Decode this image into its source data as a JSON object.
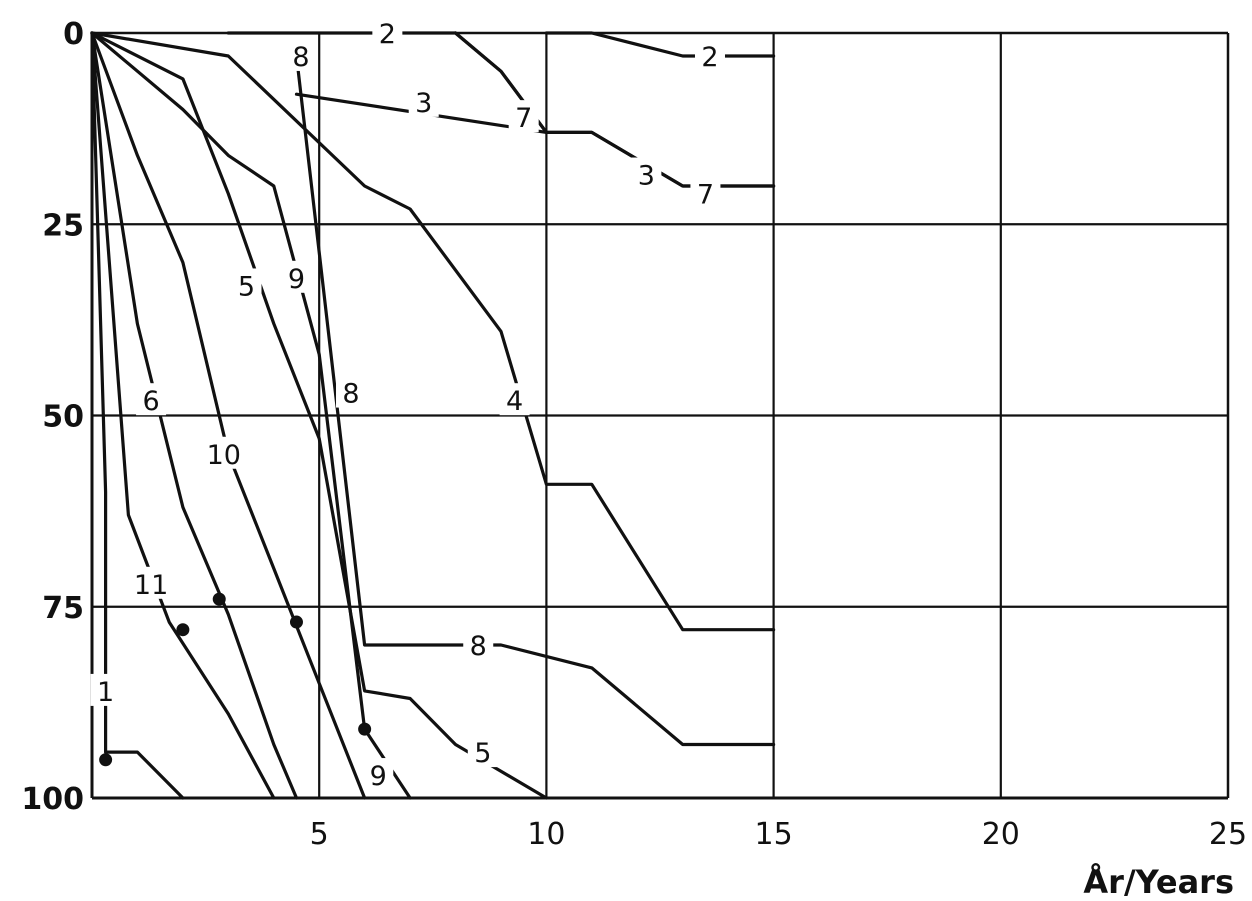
{
  "chart_data": {
    "type": "line",
    "xlabel": "År/Years",
    "ylabel": "",
    "xlim": [
      0,
      25
    ],
    "ylim": [
      0,
      100
    ],
    "y_inverted": true,
    "grid": true,
    "x_ticks": [
      "5",
      "10",
      "15",
      "20",
      "25"
    ],
    "y_ticks": [
      "0",
      "25",
      "50",
      "75",
      "100"
    ],
    "series": [
      {
        "name": "1",
        "points": [
          [
            0,
            0
          ],
          [
            0.3,
            60
          ],
          [
            0.3,
            94
          ],
          [
            1,
            94
          ],
          [
            2,
            100
          ]
        ],
        "markers": [
          [
            0.3,
            95
          ]
        ],
        "label_pos": [
          0.3,
          86
        ]
      },
      {
        "name": "2",
        "points": [
          [
            3,
            0
          ],
          [
            8,
            0
          ],
          [
            9,
            5
          ],
          [
            10,
            13
          ],
          [
            11,
            13
          ],
          [
            13,
            20
          ],
          [
            15,
            20
          ]
        ],
        "label_pos": [
          6.5,
          0
        ]
      },
      {
        "name": "2",
        "points": [
          [
            10,
            0
          ],
          [
            11,
            0
          ],
          [
            13,
            3
          ],
          [
            15,
            3
          ]
        ],
        "label_pos": [
          13.6,
          3
        ]
      },
      {
        "name": "3",
        "points": [
          [
            4.5,
            8
          ],
          [
            10,
            13
          ],
          [
            11,
            13
          ],
          [
            13,
            20
          ],
          [
            15,
            20
          ]
        ],
        "label_pos": [
          7.3,
          9
        ],
        "label_pos2": [
          12.2,
          18.5
        ]
      },
      {
        "name": "4",
        "points": [
          [
            0,
            0
          ],
          [
            3,
            3
          ],
          [
            6,
            20
          ],
          [
            7,
            23
          ],
          [
            9,
            39
          ],
          [
            10,
            59
          ],
          [
            11,
            59
          ],
          [
            13,
            78
          ],
          [
            15,
            78
          ]
        ],
        "label_pos": [
          9.3,
          48
        ]
      },
      {
        "name": "5",
        "points": [
          [
            0,
            0
          ],
          [
            2,
            6
          ],
          [
            3,
            21
          ],
          [
            4,
            38
          ],
          [
            5,
            53
          ],
          [
            6,
            86
          ],
          [
            7,
            87
          ],
          [
            8,
            93
          ],
          [
            10,
            100
          ]
        ],
        "label_pos": [
          3.4,
          33
        ],
        "label_pos2": [
          8.6,
          94
        ]
      },
      {
        "name": "6",
        "points": [
          [
            0,
            0
          ],
          [
            1,
            38
          ],
          [
            2,
            62
          ],
          [
            3,
            76
          ],
          [
            4,
            93
          ],
          [
            4.5,
            100
          ]
        ],
        "markers": [
          [
            2.8,
            74
          ]
        ],
        "label_pos": [
          1.3,
          48
        ]
      },
      {
        "name": "7",
        "points": [
          [
            8,
            0
          ],
          [
            9,
            5
          ],
          [
            10,
            13
          ]
        ],
        "label_pos": [
          9.5,
          11
        ],
        "label_pos2": [
          13.5,
          21
        ]
      },
      {
        "name": "8",
        "points": [
          [
            4.5,
            3
          ],
          [
            6,
            80
          ],
          [
            8,
            80
          ],
          [
            9,
            80
          ],
          [
            11,
            83
          ],
          [
            13,
            93
          ],
          [
            15,
            93
          ]
        ],
        "label_pos": [
          4.6,
          3
        ],
        "label_pos2": [
          5.7,
          47
        ],
        "label_pos3": [
          8.5,
          80
        ]
      },
      {
        "name": "9",
        "points": [
          [
            0,
            0
          ],
          [
            2,
            10
          ],
          [
            3,
            16
          ],
          [
            4,
            20
          ],
          [
            5,
            42
          ],
          [
            6,
            91
          ],
          [
            7,
            100
          ]
        ],
        "markers": [
          [
            6,
            91
          ]
        ],
        "label_pos": [
          4.5,
          32
        ],
        "label_pos2": [
          6.3,
          97
        ]
      },
      {
        "name": "10",
        "points": [
          [
            0,
            0
          ],
          [
            1,
            16
          ],
          [
            2,
            30
          ],
          [
            3,
            55
          ],
          [
            4,
            70
          ],
          [
            5,
            85
          ],
          [
            6,
            100
          ]
        ],
        "markers": [
          [
            4.5,
            77
          ]
        ],
        "label_pos": [
          2.9,
          55
        ]
      },
      {
        "name": "11",
        "points": [
          [
            0,
            0
          ],
          [
            0.8,
            63
          ],
          [
            1.7,
            77
          ],
          [
            3,
            89
          ],
          [
            4,
            100
          ]
        ],
        "markers": [
          [
            2,
            78
          ]
        ],
        "label_pos": [
          1.3,
          72
        ]
      }
    ]
  }
}
